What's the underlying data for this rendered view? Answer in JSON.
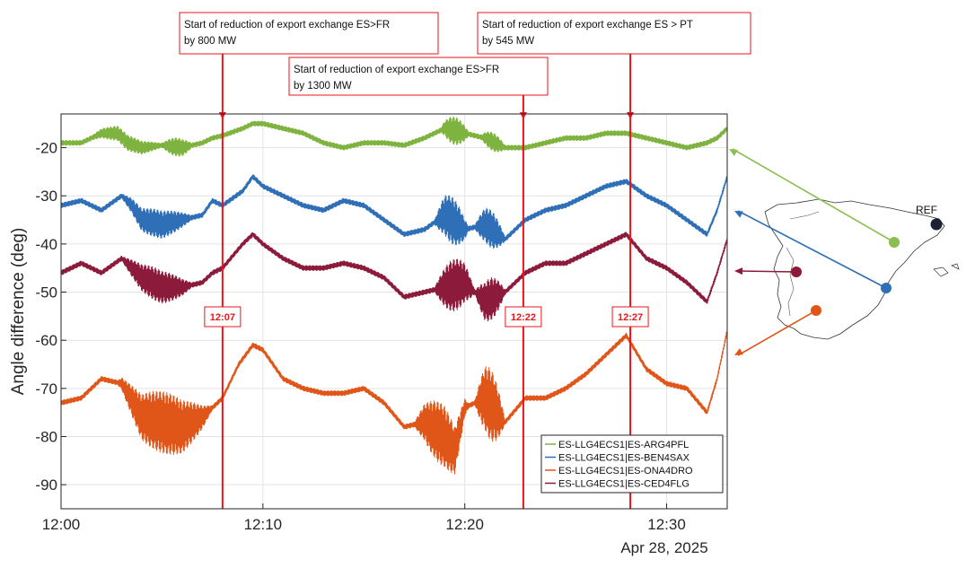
{
  "chart_data": {
    "type": "line",
    "xlabel": "",
    "ylabel": "Angle difference (deg)",
    "x_ticks": [
      "12:00",
      "12:10",
      "12:20",
      "12:30"
    ],
    "x_tick_minutes": [
      0,
      10,
      20,
      30
    ],
    "xlim_minutes": [
      0,
      33
    ],
    "date_label": "Apr 28, 2025",
    "ylim": [
      -95,
      -13
    ],
    "y_ticks": [
      -20,
      -30,
      -40,
      -50,
      -60,
      -70,
      -80,
      -90
    ],
    "grid": true,
    "legend_position": "bottom-right",
    "series": [
      {
        "name": "ES-LLG4ECS1|ES-ARG4PFL",
        "color": "#7fb33f",
        "points": [
          [
            0,
            -19
          ],
          [
            1,
            -19
          ],
          [
            2,
            -17
          ],
          [
            2.8,
            -17
          ],
          [
            3.3,
            -19
          ],
          [
            4,
            -20
          ],
          [
            5,
            -19.5
          ],
          [
            6,
            -20
          ],
          [
            7,
            -19
          ],
          [
            7.5,
            -18
          ],
          [
            8,
            -17.5
          ],
          [
            9,
            -16
          ],
          [
            9.5,
            -15
          ],
          [
            10,
            -15
          ],
          [
            11,
            -16
          ],
          [
            12,
            -17
          ],
          [
            13,
            -19
          ],
          [
            14,
            -20
          ],
          [
            15,
            -19
          ],
          [
            16,
            -19
          ],
          [
            17,
            -19.5
          ],
          [
            18,
            -18
          ],
          [
            19,
            -16
          ],
          [
            20,
            -17
          ],
          [
            21,
            -18
          ],
          [
            22,
            -20
          ],
          [
            23,
            -20
          ],
          [
            24,
            -19
          ],
          [
            25,
            -18
          ],
          [
            26,
            -18
          ],
          [
            27,
            -17
          ],
          [
            28,
            -17
          ],
          [
            29,
            -18
          ],
          [
            30,
            -19
          ],
          [
            31,
            -20
          ],
          [
            32,
            -19
          ],
          [
            32.5,
            -18
          ],
          [
            33,
            -16
          ]
        ],
        "osc": [
          [
            1.5,
            5,
            1.2
          ],
          [
            5,
            6.5,
            1.5
          ],
          [
            18.8,
            20.2,
            2.5
          ],
          [
            20.8,
            22,
            1.5
          ]
        ]
      },
      {
        "name": "ES-LLG4ECS1|ES-BEN4SAX",
        "color": "#2e6fb7",
        "points": [
          [
            0,
            -32
          ],
          [
            1,
            -31
          ],
          [
            2,
            -33
          ],
          [
            3,
            -30
          ],
          [
            3.5,
            -32
          ],
          [
            4,
            -35
          ],
          [
            5,
            -36
          ],
          [
            6,
            -35
          ],
          [
            7,
            -34
          ],
          [
            7.5,
            -31
          ],
          [
            8,
            -32
          ],
          [
            9,
            -29
          ],
          [
            9.5,
            -26
          ],
          [
            10,
            -28
          ],
          [
            11,
            -30
          ],
          [
            12,
            -32
          ],
          [
            13,
            -33
          ],
          [
            14,
            -31
          ],
          [
            15,
            -32
          ],
          [
            16,
            -35
          ],
          [
            17,
            -38
          ],
          [
            18,
            -37
          ],
          [
            19,
            -34
          ],
          [
            20,
            -37
          ],
          [
            21,
            -36
          ],
          [
            22,
            -39
          ],
          [
            23,
            -35
          ],
          [
            24,
            -33
          ],
          [
            25,
            -32
          ],
          [
            26,
            -30
          ],
          [
            27,
            -28
          ],
          [
            28,
            -27
          ],
          [
            29,
            -30
          ],
          [
            30,
            -32
          ],
          [
            31,
            -35
          ],
          [
            32,
            -38
          ],
          [
            32.5,
            -33
          ],
          [
            33,
            -26
          ]
        ],
        "osc": [
          [
            3,
            6.5,
            2.5
          ],
          [
            18.5,
            20.2,
            4.5
          ],
          [
            20.5,
            22,
            3.5
          ]
        ]
      },
      {
        "name": "ES-LLG4ECS1|ES-ONA4DRO",
        "color": "#e05518",
        "points": [
          [
            0,
            -73
          ],
          [
            1,
            -72
          ],
          [
            2,
            -68
          ],
          [
            3,
            -69
          ],
          [
            4,
            -76
          ],
          [
            5,
            -77
          ],
          [
            6,
            -78
          ],
          [
            7,
            -76
          ],
          [
            8,
            -72
          ],
          [
            8.8,
            -65
          ],
          [
            9.5,
            -61
          ],
          [
            10,
            -62
          ],
          [
            11,
            -68
          ],
          [
            12,
            -70
          ],
          [
            13,
            -71
          ],
          [
            14,
            -71
          ],
          [
            15,
            -70
          ],
          [
            16,
            -73
          ],
          [
            17,
            -78
          ],
          [
            18,
            -77
          ],
          [
            19,
            -80
          ],
          [
            19.5,
            -83
          ],
          [
            20,
            -74
          ],
          [
            21,
            -72
          ],
          [
            22,
            -77
          ],
          [
            23,
            -72
          ],
          [
            24,
            -72
          ],
          [
            25,
            -70
          ],
          [
            26,
            -67
          ],
          [
            27,
            -63
          ],
          [
            28,
            -59
          ],
          [
            29,
            -66
          ],
          [
            30,
            -69
          ],
          [
            31,
            -70
          ],
          [
            32,
            -75
          ],
          [
            32.5,
            -68
          ],
          [
            33,
            -58
          ]
        ],
        "osc": [
          [
            2.8,
            7.5,
            6
          ],
          [
            17.5,
            20.2,
            6
          ],
          [
            20.5,
            22,
            7
          ]
        ]
      },
      {
        "name": "ES-LLG4ECS1|ES-CED4FLG",
        "color": "#8c1b3b",
        "points": [
          [
            0,
            -46
          ],
          [
            1,
            -44
          ],
          [
            2,
            -46
          ],
          [
            3,
            -43
          ],
          [
            4,
            -47
          ],
          [
            5,
            -49
          ],
          [
            6,
            -49
          ],
          [
            7,
            -48
          ],
          [
            7.5,
            -46
          ],
          [
            8,
            -45
          ],
          [
            9,
            -40
          ],
          [
            9.5,
            -38
          ],
          [
            10,
            -40
          ],
          [
            11,
            -43
          ],
          [
            12,
            -45
          ],
          [
            13,
            -45
          ],
          [
            14,
            -44
          ],
          [
            15,
            -45
          ],
          [
            16,
            -47
          ],
          [
            17,
            -51
          ],
          [
            18,
            -50
          ],
          [
            19,
            -49
          ],
          [
            20,
            -48
          ],
          [
            21,
            -52
          ],
          [
            22,
            -50
          ],
          [
            23,
            -46
          ],
          [
            24,
            -44
          ],
          [
            25,
            -44
          ],
          [
            26,
            -42
          ],
          [
            27,
            -40
          ],
          [
            28,
            -38
          ],
          [
            29,
            -43
          ],
          [
            30,
            -45
          ],
          [
            31,
            -48
          ],
          [
            32,
            -52
          ],
          [
            32.5,
            -46
          ],
          [
            33,
            -39
          ]
        ],
        "osc": [
          [
            3,
            6.5,
            3
          ],
          [
            18.5,
            20.5,
            5
          ],
          [
            20.5,
            22,
            4
          ]
        ]
      }
    ],
    "annotations": [
      {
        "time": "12:07",
        "x_min": 8.0,
        "box_line1": "Start  of  reduction  of  export  exchange  ES>FR",
        "box_line2": "by  800  MW"
      },
      {
        "time": "12:22",
        "x_min": 22.9,
        "box_line1": "Start  of  reduction  of  export  exchange  ES>FR",
        "box_line2": "by  1300  MW"
      },
      {
        "time": "12:27",
        "x_min": 28.2,
        "box_line1": "Start  of  reduction  of  export  exchange  ES  >  PT",
        "box_line2": "by  545  MW"
      }
    ],
    "map": {
      "ref_label": "REF",
      "nodes": [
        {
          "series": 0,
          "color": "#8abe4e"
        },
        {
          "series": 1,
          "color": "#2e6fb7"
        },
        {
          "series": 3,
          "color": "#8c1b3b"
        },
        {
          "series": 2,
          "color": "#e05518"
        }
      ],
      "ref_color": "#1a2233"
    },
    "accent_red": "#e8151b"
  }
}
